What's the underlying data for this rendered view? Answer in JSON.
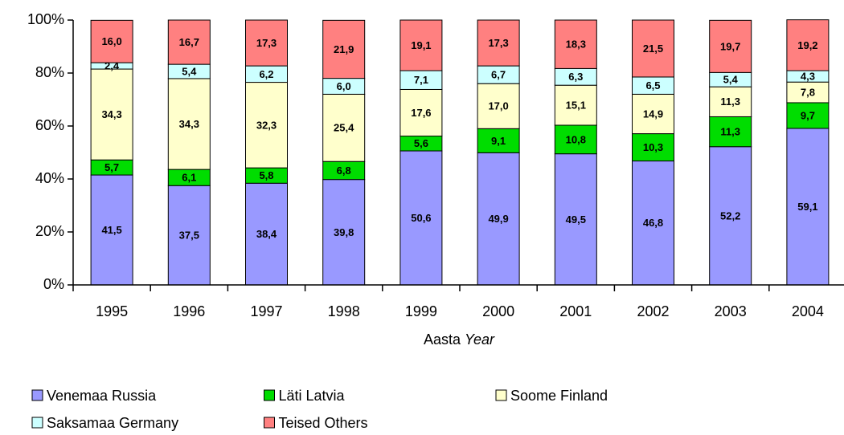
{
  "chart_data": {
    "type": "stacked_bar",
    "categories": [
      "1995",
      "1996",
      "1997",
      "1998",
      "1999",
      "2000",
      "2001",
      "2002",
      "2003",
      "2004"
    ],
    "xlabel": [
      "Aasta",
      "Year"
    ],
    "ylim": [
      0,
      100
    ],
    "yticks": [
      {
        "value": 0,
        "label": "0%"
      },
      {
        "value": 20,
        "label": "20%"
      },
      {
        "value": 40,
        "label": "40%"
      },
      {
        "value": 60,
        "label": "60%"
      },
      {
        "value": 80,
        "label": "80%"
      },
      {
        "value": 100,
        "label": "100%"
      }
    ],
    "legend": "bottom",
    "series": [
      {
        "name": "Venemaa Russia",
        "color": "#9999ff",
        "values": [
          41.5,
          37.5,
          38.4,
          39.8,
          50.6,
          49.9,
          49.5,
          46.8,
          52.2,
          59.1
        ],
        "value_labels": [
          "41,5",
          "37,5",
          "38,4",
          "39,8",
          "50,6",
          "49,9",
          "49,5",
          "46,8",
          "52,2",
          "59,1"
        ]
      },
      {
        "name": "Läti Latvia",
        "color": "#00dd00",
        "values": [
          5.7,
          6.1,
          5.8,
          6.8,
          5.6,
          9.1,
          10.8,
          10.3,
          11.3,
          9.7
        ],
        "value_labels": [
          "5,7",
          "6,1",
          "5,8",
          "6,8",
          "5,6",
          "9,1",
          "10,8",
          "10,3",
          "11,3",
          "9,7"
        ]
      },
      {
        "name": "Soome Finland",
        "color": "#ffffcc",
        "values": [
          34.3,
          34.3,
          32.3,
          25.4,
          17.6,
          17.0,
          15.1,
          14.9,
          11.3,
          7.8
        ],
        "value_labels": [
          "34,3",
          "34,3",
          "32,3",
          "25,4",
          "17,6",
          "17,0",
          "15,1",
          "14,9",
          "11,3",
          "7,8"
        ]
      },
      {
        "name": "Saksamaa Germany",
        "color": "#ccffff",
        "values": [
          2.4,
          5.4,
          6.2,
          6.0,
          7.1,
          6.7,
          6.3,
          6.5,
          5.4,
          4.3
        ],
        "value_labels": [
          "2,4",
          "5,4",
          "6,2",
          "6,0",
          "7,1",
          "6,7",
          "6,3",
          "6,5",
          "5,4",
          "4,3"
        ]
      },
      {
        "name": "Teised Others",
        "color": "#ff8080",
        "values": [
          16.0,
          16.7,
          17.3,
          21.9,
          19.1,
          17.3,
          18.3,
          21.5,
          19.7,
          19.2
        ],
        "value_labels": [
          "16,0",
          "16,7",
          "17,3",
          "21,9",
          "19,1",
          "17,3",
          "18,3",
          "21,5",
          "19,7",
          "19,2"
        ]
      }
    ]
  }
}
